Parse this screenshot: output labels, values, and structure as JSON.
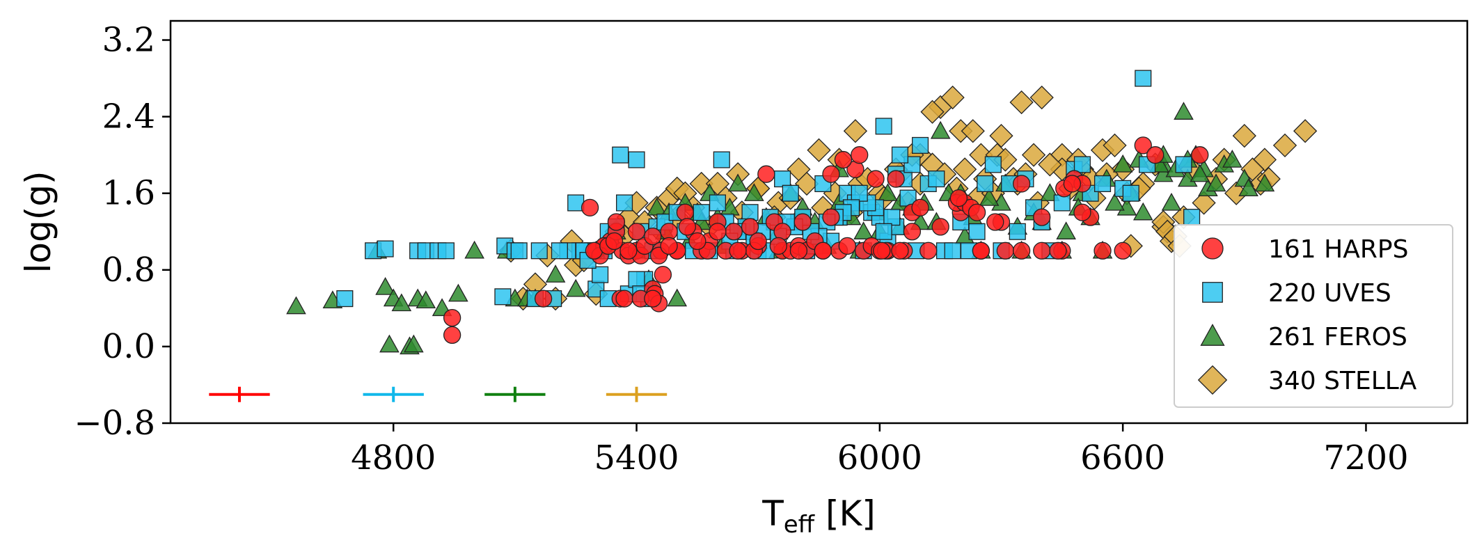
{
  "chart_data": {
    "type": "scatter",
    "xlabel": "T",
    "xlabel_sub": "eff",
    "xlabel_unit": " [K]",
    "ylabel": "log(g)",
    "xlim": [
      4250,
      7450
    ],
    "ylim": [
      -0.8,
      3.4
    ],
    "x_ticks": [
      4800,
      5400,
      6000,
      6600,
      7200
    ],
    "x_tick_labels": [
      "4800",
      "5400",
      "6000",
      "6600",
      "7200"
    ],
    "y_ticks": [
      -0.8,
      0.0,
      0.8,
      1.6,
      2.4,
      3.2
    ],
    "y_tick_labels": [
      "−0.8",
      "0.0",
      "0.8",
      "1.6",
      "2.4",
      "3.2"
    ],
    "legend_position": "lower right",
    "series": [
      {
        "name": "161 HARPS",
        "marker": "circle",
        "color": "#ff2020",
        "x": [
          4945,
          4945,
          5170,
          5285,
          5300,
          5320,
          5335,
          5350,
          5365,
          5380,
          5400,
          5410,
          5420,
          5440,
          5460,
          5480,
          5500,
          5520,
          5540,
          5560,
          5580,
          5600,
          5620,
          5640,
          5660,
          5680,
          5700,
          5720,
          5740,
          5760,
          5780,
          5800,
          5820,
          5840,
          5860,
          5880,
          5900,
          5920,
          5940,
          5960,
          5980,
          6000,
          6020,
          6040,
          6060,
          6080,
          6100,
          6150,
          6200,
          6250,
          6300,
          6350,
          6400,
          6450,
          6480,
          6500,
          6520,
          6550,
          6600,
          6650,
          6680,
          6790,
          5360,
          5370,
          5440,
          5455,
          5465,
          5445,
          5455,
          5410,
          5440,
          5350,
          5300,
          5690,
          5760,
          5810,
          5880,
          5910,
          5950,
          5990,
          6015,
          6050,
          6080,
          6190,
          6210,
          6225,
          6240,
          6285,
          6310,
          6350,
          6400,
          6455,
          6475,
          6500,
          6440,
          6250,
          6195,
          6120,
          6005,
          5860,
          5800,
          5750,
          5700,
          5650,
          5600,
          5575,
          5550,
          5525,
          5500,
          5480,
          5400,
          5380,
          5320,
          5310,
          5295,
          5330,
          5345
        ],
        "y": [
          0.3,
          0.12,
          0.5,
          1.45,
          1.0,
          1.05,
          1.1,
          1.2,
          1.0,
          0.95,
          1.0,
          0.95,
          1.05,
          1.15,
          1.0,
          1.2,
          1.0,
          1.4,
          1.2,
          1.0,
          1.1,
          1.3,
          1.0,
          1.2,
          1.0,
          1.25,
          1.05,
          1.8,
          1.3,
          1.0,
          1.0,
          1.05,
          1.0,
          1.1,
          1.0,
          1.35,
          1.0,
          1.05,
          1.85,
          1.0,
          1.05,
          1.0,
          1.0,
          1.75,
          1.0,
          1.4,
          1.45,
          1.25,
          1.4,
          1.0,
          1.3,
          1.7,
          1.35,
          1.0,
          1.75,
          1.7,
          1.35,
          1.0,
          1.0,
          2.1,
          2.0,
          2.0,
          0.5,
          0.5,
          0.6,
          0.95,
          0.75,
          0.55,
          0.45,
          0.5,
          0.5,
          1.3,
          1.0,
          1.0,
          1.2,
          1.3,
          1.8,
          1.95,
          2.0,
          1.75,
          1.0,
          1.0,
          1.2,
          1.5,
          1.5,
          1.45,
          1.4,
          1.3,
          1.0,
          1.0,
          1.0,
          1.65,
          1.7,
          1.4,
          1.0,
          1.0,
          1.55,
          1.0,
          1.0,
          1.0,
          1.0,
          1.05,
          1.1,
          1.0,
          1.2,
          1.0,
          1.1,
          1.25,
          1.0,
          1.05,
          1.2,
          1.0,
          1.05,
          0.95,
          1.0,
          1.05,
          1.1
        ]
      },
      {
        "name": "220 UVES",
        "marker": "square",
        "color": "#2ec4f0",
        "x": [
          4680,
          4750,
          4780,
          4860,
          4880,
          4910,
          4930,
          5070,
          5075,
          5100,
          5110,
          5150,
          5160,
          5195,
          5250,
          5290,
          5300,
          5310,
          5320,
          5330,
          5360,
          5400,
          5410,
          5420,
          5430,
          5440,
          5450,
          5470,
          5500,
          5520,
          5540,
          5560,
          5580,
          5600,
          5610,
          5620,
          5640,
          5660,
          5680,
          5700,
          5720,
          5740,
          5760,
          5780,
          5800,
          5820,
          5840,
          5860,
          5880,
          5900,
          5920,
          5940,
          5960,
          5980,
          6000,
          6010,
          6020,
          6040,
          6060,
          6080,
          6100,
          6120,
          6140,
          6160,
          6180,
          6200,
          6220,
          6240,
          6260,
          6280,
          6300,
          6320,
          6340,
          6360,
          6380,
          6400,
          6420,
          6450,
          6480,
          6500,
          6520,
          6550,
          6600,
          6620,
          6650,
          6750,
          6660,
          6770,
          5260,
          5270,
          5380,
          5300,
          5330,
          5350,
          5400,
          5410,
          5370,
          5230,
          5210,
          5280,
          6050,
          6070,
          6090,
          6040,
          6030,
          6010,
          5990,
          5970,
          5950,
          5930,
          5910,
          5890,
          5870,
          5850,
          5830,
          5810,
          5790,
          5770,
          5750,
          5730,
          5710,
          5690,
          5670,
          5650,
          5630
        ],
        "y": [
          0.5,
          1.0,
          1.02,
          1.0,
          1.0,
          1.0,
          1.0,
          0.52,
          1.05,
          1.0,
          1.0,
          0.5,
          1.0,
          0.5,
          1.5,
          1.0,
          0.6,
          0.75,
          1.0,
          0.5,
          2.0,
          1.95,
          1.2,
          0.7,
          0.5,
          1.0,
          1.25,
          1.3,
          1.4,
          1.2,
          1.0,
          1.4,
          1.0,
          1.5,
          1.95,
          1.3,
          1.0,
          1.2,
          1.4,
          1.0,
          1.0,
          1.3,
          1.75,
          1.6,
          1.3,
          1.0,
          1.05,
          1.7,
          1.1,
          1.35,
          1.6,
          1.5,
          1.0,
          1.4,
          1.35,
          2.3,
          1.1,
          1.8,
          1.75,
          1.9,
          2.1,
          1.7,
          1.75,
          1.0,
          1.0,
          1.3,
          1.0,
          1.2,
          1.7,
          1.9,
          1.0,
          1.7,
          1.2,
          1.75,
          1.45,
          1.3,
          1.0,
          1.5,
          1.85,
          1.9,
          1.6,
          1.7,
          1.65,
          1.6,
          2.8,
          1.9,
          1.9,
          1.35,
          1.0,
          1.0,
          0.55,
          1.0,
          1.2,
          1.25,
          0.7,
          0.55,
          1.5,
          1.0,
          1.0,
          0.9,
          2.0,
          1.55,
          1.0,
          1.25,
          1.35,
          1.2,
          1.45,
          1.5,
          1.6,
          1.45,
          1.4,
          1.35,
          1.3,
          1.15,
          1.2,
          1.35,
          1.25,
          1.3,
          1.15,
          1.35,
          1.2,
          1.1,
          1.25,
          1.2,
          1.1
        ]
      },
      {
        "name": "261 FEROS",
        "marker": "triangle",
        "color": "#2e8b2e",
        "x": [
          4560,
          4650,
          4760,
          4780,
          4800,
          4820,
          4860,
          4880,
          4960,
          4920,
          4790,
          4840,
          4850,
          5000,
          5080,
          5100,
          5130,
          5150,
          5200,
          5250,
          5300,
          5350,
          5400,
          5450,
          5500,
          5550,
          5600,
          5650,
          5700,
          5750,
          5800,
          5850,
          5900,
          5950,
          6000,
          6050,
          6100,
          6150,
          6200,
          6250,
          6300,
          6350,
          6400,
          6450,
          6500,
          6550,
          6600,
          6650,
          6700,
          6750,
          6800,
          6850,
          6900,
          6950,
          6780,
          6720,
          6810,
          6760,
          6700,
          6610,
          5430,
          5450,
          5470,
          5480,
          5520,
          5530,
          5560,
          5580,
          5610,
          5630,
          5660,
          5690,
          5720,
          5750,
          5780,
          5810,
          5840,
          5870,
          5900,
          5930,
          5960,
          5990,
          6020,
          6050,
          6080,
          6110,
          6140,
          6170,
          6210,
          6230,
          6270,
          6310,
          6340,
          6380,
          6420,
          6460,
          6490,
          6520,
          6560,
          6580,
          6620,
          6640,
          6690,
          6700,
          6730,
          6760,
          6790,
          6830,
          6870,
          6910
        ],
        "y": [
          0.42,
          0.48,
          1.0,
          0.62,
          0.5,
          0.45,
          0.5,
          0.48,
          0.55,
          0.4,
          0.02,
          0.0,
          0.02,
          1.0,
          1.0,
          0.5,
          0.5,
          0.5,
          0.75,
          0.6,
          1.0,
          1.2,
          1.0,
          1.45,
          0.5,
          1.4,
          1.35,
          1.7,
          1.1,
          1.0,
          1.3,
          1.05,
          1.85,
          1.0,
          1.2,
          1.5,
          1.3,
          2.25,
          1.6,
          1.0,
          1.5,
          1.0,
          1.3,
          1.0,
          1.6,
          1.0,
          1.9,
          1.4,
          1.8,
          2.45,
          1.85,
          1.9,
          1.75,
          1.7,
          2.0,
          1.5,
          1.65,
          1.75,
          1.9,
          1.45,
          0.7,
          1.0,
          1.2,
          1.4,
          1.5,
          1.1,
          1.3,
          1.6,
          1.05,
          1.45,
          1.25,
          1.6,
          1.35,
          1.2,
          1.6,
          1.45,
          1.3,
          1.05,
          1.5,
          1.35,
          1.2,
          1.4,
          1.6,
          1.25,
          1.45,
          1.5,
          1.3,
          1.6,
          1.15,
          1.35,
          1.55,
          1.7,
          1.25,
          1.4,
          1.6,
          1.2,
          1.45,
          1.35,
          1.75,
          1.5,
          1.6,
          1.95,
          1.9,
          2.0,
          1.85,
          1.95,
          1.8,
          1.7,
          1.95,
          1.65
        ]
      },
      {
        "name": "340 STELLA",
        "marker": "diamond",
        "color": "#dba83c",
        "x": [
          5090,
          5120,
          5150,
          5200,
          5250,
          5300,
          5350,
          5380,
          5400,
          5420,
          5450,
          5480,
          5500,
          5520,
          5560,
          5600,
          5650,
          5700,
          5750,
          5800,
          5850,
          5900,
          5950,
          6000,
          6050,
          6100,
          6150,
          6200,
          6250,
          6300,
          6350,
          6400,
          6450,
          6500,
          6550,
          6600,
          6650,
          6700,
          6750,
          6800,
          6850,
          6900,
          6950,
          7000,
          7050,
          5940,
          6080,
          6130,
          6180,
          6230,
          6290,
          6330,
          6380,
          6450,
          6520,
          6580,
          6640,
          6700,
          6710,
          6720,
          6730,
          6740,
          6620,
          6880,
          6940,
          6960,
          6920,
          5460,
          5500,
          5540,
          5580,
          5620,
          5660,
          5700,
          5740,
          5780,
          5820,
          5860,
          5890,
          5930,
          5970,
          6010,
          6040,
          6070,
          6100,
          6130,
          6160,
          6190,
          6210,
          6240,
          6260,
          6280,
          6310,
          6340,
          6360,
          6390,
          6420,
          6470,
          6490,
          6530,
          6560,
          6610,
          6680,
          6770,
          6830,
          5180,
          5240,
          5270,
          5330,
          5370
        ],
        "y": [
          1.0,
          0.5,
          0.65,
          0.5,
          0.85,
          0.55,
          1.2,
          1.35,
          1.5,
          1.3,
          1.45,
          1.55,
          1.65,
          1.6,
          1.7,
          1.7,
          1.8,
          1.65,
          1.5,
          1.85,
          2.05,
          1.95,
          1.7,
          1.6,
          1.8,
          2.0,
          2.5,
          2.25,
          2.0,
          2.2,
          2.55,
          2.6,
          2.0,
          1.85,
          2.05,
          1.85,
          1.7,
          1.25,
          1.35,
          1.5,
          1.95,
          2.2,
          1.95,
          2.1,
          2.25,
          2.25,
          2.0,
          2.45,
          2.6,
          2.25,
          2.0,
          1.75,
          2.0,
          1.85,
          1.75,
          2.1,
          1.65,
          1.3,
          1.2,
          1.1,
          1.15,
          1.05,
          1.05,
          1.6,
          1.7,
          1.75,
          1.85,
          1.2,
          1.35,
          1.45,
          1.25,
          1.55,
          1.4,
          1.65,
          1.35,
          1.55,
          1.7,
          1.45,
          1.6,
          1.4,
          1.75,
          1.55,
          1.85,
          1.5,
          1.7,
          1.9,
          1.8,
          1.65,
          1.85,
          1.55,
          1.75,
          1.6,
          1.95,
          1.7,
          1.8,
          1.5,
          1.9,
          1.65,
          1.95,
          1.55,
          1.8,
          1.6,
          1.9,
          1.85,
          1.75,
          0.95,
          1.1,
          0.9,
          1.05,
          1.15
        ]
      }
    ],
    "error_bars": [
      {
        "series": "161 HARPS",
        "color": "#ff0000",
        "x": 4420,
        "y": -0.5,
        "xerr": 75,
        "yerr": 0.08
      },
      {
        "series": "220 UVES",
        "color": "#10b8ea",
        "x": 4800,
        "y": -0.5,
        "xerr": 75,
        "yerr": 0.08
      },
      {
        "series": "261 FEROS",
        "color": "#108010",
        "x": 5100,
        "y": -0.5,
        "xerr": 75,
        "yerr": 0.08
      },
      {
        "series": "340 STELLA",
        "color": "#dba020",
        "x": 5400,
        "y": -0.5,
        "xerr": 75,
        "yerr": 0.08
      }
    ]
  }
}
